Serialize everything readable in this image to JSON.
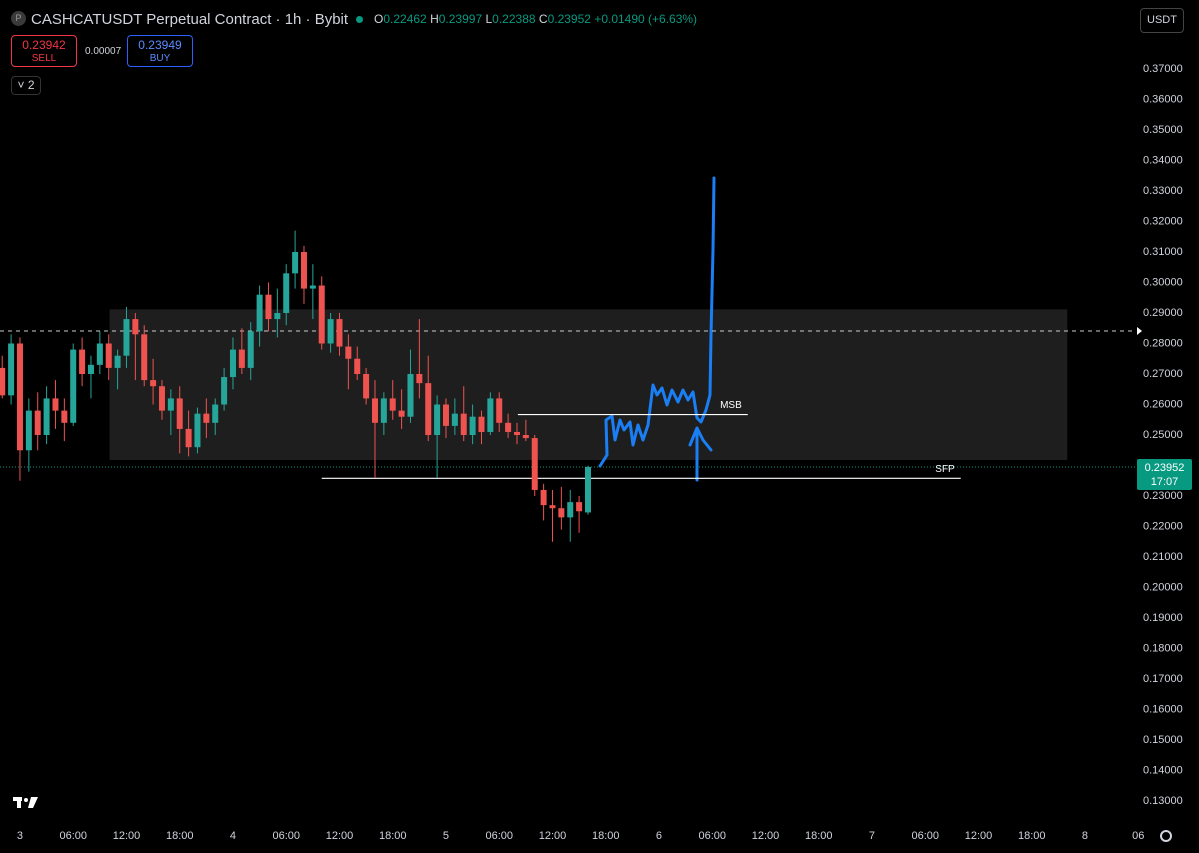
{
  "header": {
    "logo": "P",
    "symbol": "CASHCATUSDT Perpetual Contract · 1h · Bybit",
    "o_label": "O",
    "open": "0.22462",
    "h_label": "H",
    "high": "0.23997",
    "l_label": "L",
    "low": "0.22388",
    "c_label": "C",
    "close": "0.23952",
    "change": "+0.01490 (+6.63%)",
    "sell_price": "0.23942",
    "sell": "SELL",
    "spread": "0.00007",
    "buy_price": "0.23949",
    "buy": "BUY",
    "indicators": "2",
    "currency": "USDT",
    "countdown": "17:07"
  },
  "chart_data": {
    "type": "candlestick",
    "x": [
      -2,
      -1,
      0,
      1,
      2,
      3,
      4,
      5,
      6,
      7,
      8,
      9,
      10,
      11,
      12,
      13,
      14,
      15,
      16,
      17,
      18,
      19,
      20,
      21,
      22,
      23,
      24,
      25,
      26,
      27,
      28,
      29,
      30,
      31,
      32,
      33,
      34,
      35,
      36,
      37,
      38,
      39,
      40,
      41,
      42,
      43,
      44,
      45,
      46,
      47,
      48,
      49,
      50,
      51,
      52,
      53,
      54,
      55,
      56,
      57,
      58,
      59,
      60,
      61,
      62,
      63,
      64
    ],
    "open": [
      0.272,
      0.263,
      0.28,
      0.245,
      0.258,
      0.25,
      0.262,
      0.258,
      0.254,
      0.278,
      0.27,
      0.273,
      0.28,
      0.272,
      0.276,
      0.288,
      0.283,
      0.268,
      0.266,
      0.258,
      0.262,
      0.252,
      0.246,
      0.257,
      0.254,
      0.26,
      0.269,
      0.278,
      0.272,
      0.284,
      0.296,
      0.288,
      0.29,
      0.303,
      0.31,
      0.298,
      0.299,
      0.28,
      0.288,
      0.279,
      0.275,
      0.27,
      0.262,
      0.254,
      0.262,
      0.258,
      0.256,
      0.27,
      0.267,
      0.25,
      0.26,
      0.253,
      0.257,
      0.25,
      0.256,
      0.251,
      0.262,
      0.254,
      0.251,
      0.25,
      0.249,
      0.232,
      0.227,
      0.226,
      0.223,
      0.228,
      0.22462
    ],
    "high": [
      0.276,
      0.283,
      0.282,
      0.262,
      0.264,
      0.266,
      0.268,
      0.262,
      0.28,
      0.282,
      0.276,
      0.284,
      0.283,
      0.278,
      0.292,
      0.29,
      0.286,
      0.275,
      0.268,
      0.265,
      0.266,
      0.258,
      0.259,
      0.262,
      0.262,
      0.272,
      0.282,
      0.285,
      0.287,
      0.299,
      0.3,
      0.298,
      0.306,
      0.317,
      0.312,
      0.306,
      0.302,
      0.29,
      0.29,
      0.283,
      0.279,
      0.272,
      0.268,
      0.264,
      0.268,
      0.265,
      0.278,
      0.288,
      0.276,
      0.263,
      0.262,
      0.262,
      0.266,
      0.26,
      0.258,
      0.264,
      0.264,
      0.257,
      0.254,
      0.255,
      0.25,
      0.234,
      0.232,
      0.233,
      0.232,
      0.23,
      0.23997
    ],
    "low": [
      0.262,
      0.26,
      0.235,
      0.238,
      0.245,
      0.247,
      0.252,
      0.248,
      0.253,
      0.266,
      0.262,
      0.27,
      0.268,
      0.265,
      0.272,
      0.268,
      0.266,
      0.26,
      0.255,
      0.25,
      0.244,
      0.243,
      0.244,
      0.249,
      0.25,
      0.258,
      0.265,
      0.27,
      0.268,
      0.279,
      0.284,
      0.282,
      0.286,
      0.298,
      0.293,
      0.288,
      0.278,
      0.277,
      0.276,
      0.265,
      0.268,
      0.26,
      0.236,
      0.25,
      0.255,
      0.252,
      0.254,
      0.262,
      0.248,
      0.236,
      0.249,
      0.25,
      0.248,
      0.247,
      0.247,
      0.25,
      0.251,
      0.249,
      0.247,
      0.248,
      0.23,
      0.222,
      0.215,
      0.219,
      0.215,
      0.218,
      0.22388
    ],
    "close": [
      0.263,
      0.28,
      0.245,
      0.258,
      0.25,
      0.262,
      0.258,
      0.254,
      0.278,
      0.27,
      0.273,
      0.28,
      0.272,
      0.276,
      0.288,
      0.283,
      0.268,
      0.266,
      0.258,
      0.262,
      0.252,
      0.246,
      0.257,
      0.254,
      0.26,
      0.269,
      0.278,
      0.272,
      0.284,
      0.296,
      0.288,
      0.29,
      0.303,
      0.31,
      0.298,
      0.299,
      0.28,
      0.288,
      0.279,
      0.275,
      0.27,
      0.262,
      0.254,
      0.262,
      0.258,
      0.256,
      0.27,
      0.267,
      0.25,
      0.26,
      0.253,
      0.257,
      0.25,
      0.256,
      0.251,
      0.262,
      0.254,
      0.251,
      0.25,
      0.249,
      0.232,
      0.227,
      0.226,
      0.223,
      0.228,
      0.225,
      0.23952
    ],
    "up_color": "#26a69a",
    "down_color": "#ef5350",
    "xlim": [
      -2.25,
      126
    ],
    "xticks": [
      {
        "value": 0,
        "label": "3"
      },
      {
        "value": 6,
        "label": "06:00"
      },
      {
        "value": 12,
        "label": "12:00"
      },
      {
        "value": 18,
        "label": "18:00"
      },
      {
        "value": 24,
        "label": "4"
      },
      {
        "value": 30,
        "label": "06:00"
      },
      {
        "value": 36,
        "label": "12:00"
      },
      {
        "value": 42,
        "label": "18:00"
      },
      {
        "value": 48,
        "label": "5"
      },
      {
        "value": 54,
        "label": "06:00"
      },
      {
        "value": 60,
        "label": "12:00"
      },
      {
        "value": 66,
        "label": "18:00"
      },
      {
        "value": 72,
        "label": "6"
      },
      {
        "value": 78,
        "label": "06:00"
      },
      {
        "value": 84,
        "label": "12:00"
      },
      {
        "value": 90,
        "label": "18:00"
      },
      {
        "value": 96,
        "label": "7"
      },
      {
        "value": 102,
        "label": "06:00"
      },
      {
        "value": 108,
        "label": "12:00"
      },
      {
        "value": 114,
        "label": "18:00"
      },
      {
        "value": 120,
        "label": "8"
      },
      {
        "value": 126,
        "label": "06"
      }
    ],
    "ylim": [
      0.1238,
      0.3926
    ],
    "yticks": [
      {
        "value": 0.13,
        "label": "0.13000"
      },
      {
        "value": 0.14,
        "label": "0.14000"
      },
      {
        "value": 0.15,
        "label": "0.15000"
      },
      {
        "value": 0.16,
        "label": "0.16000"
      },
      {
        "value": 0.17,
        "label": "0.17000"
      },
      {
        "value": 0.18,
        "label": "0.18000"
      },
      {
        "value": 0.19,
        "label": "0.19000"
      },
      {
        "value": 0.2,
        "label": "0.20000"
      },
      {
        "value": 0.21,
        "label": "0.21000"
      },
      {
        "value": 0.22,
        "label": "0.22000"
      },
      {
        "value": 0.23,
        "label": "0.23000"
      },
      {
        "value": 0.24,
        "label": "0.24000"
      },
      {
        "value": 0.25,
        "label": "0.25000"
      },
      {
        "value": 0.26,
        "label": "0.26000"
      },
      {
        "value": 0.27,
        "label": "0.27000"
      },
      {
        "value": 0.28,
        "label": "0.28000"
      },
      {
        "value": 0.29,
        "label": "0.29000"
      },
      {
        "value": 0.3,
        "label": "0.30000"
      },
      {
        "value": 0.31,
        "label": "0.31000"
      },
      {
        "value": 0.32,
        "label": "0.32000"
      },
      {
        "value": 0.33,
        "label": "0.33000"
      },
      {
        "value": 0.34,
        "label": "0.34000"
      },
      {
        "value": 0.35,
        "label": "0.35000"
      },
      {
        "value": 0.36,
        "label": "0.36000"
      },
      {
        "value": 0.37,
        "label": "0.37000"
      }
    ],
    "zone": {
      "x": [
        10.1,
        118
      ],
      "y": [
        0.2418,
        0.2912
      ]
    },
    "lines": [
      {
        "text": "MSB",
        "y": 0.2567,
        "x": [
          56.1,
          82
        ]
      },
      {
        "text": "SFP",
        "y": 0.2358,
        "x": [
          34,
          106
        ]
      }
    ],
    "ref_line": 0.2841
  }
}
